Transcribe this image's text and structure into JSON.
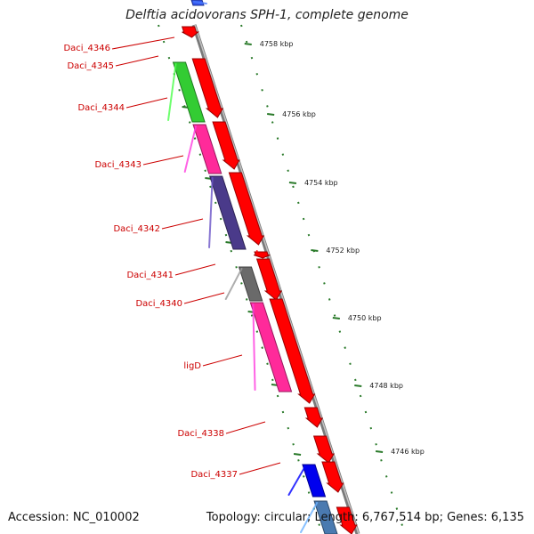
{
  "title": "Delftia acidovorans SPH-1, complete genome",
  "footer": {
    "accession": "Accession: NC_010002",
    "topology": "Topology: circular; Length: 6,767,514 bp; Genes: 6,135"
  },
  "colors": {
    "backbone": "#8a8a8a",
    "forward_gene": "#ff0000",
    "label": "#cc0000",
    "ruler_tick": "#2a7a2a",
    "cog_green": "#33cc33",
    "cog_pink": "#ff2a9a",
    "cog_purple": "#4a3a8a",
    "cog_gray": "#6a6a6a",
    "cog_blue": "#0000ee",
    "cog_steel": "#4a7ab0"
  },
  "ruler": {
    "units": "kbp",
    "ticks": [
      "4758 kbp",
      "4756 kbp",
      "4754 kbp",
      "4752 kbp",
      "4750 kbp",
      "4748 kbp",
      "4746 kbp"
    ]
  },
  "genes": [
    {
      "name": "Daci_4346",
      "cog": "none"
    },
    {
      "name": "Daci_4345",
      "cog": "none"
    },
    {
      "name": "Daci_4344",
      "cog": "green"
    },
    {
      "name": "Daci_4343",
      "cog": "pink"
    },
    {
      "name": "Daci_4342",
      "cog": "purple"
    },
    {
      "name": "Daci_4341",
      "cog": "none"
    },
    {
      "name": "Daci_4340",
      "cog": "gray"
    },
    {
      "name": "ligD",
      "cog": "pink"
    },
    {
      "name": "Daci_4338",
      "cog": "none"
    },
    {
      "name": "Daci_4337",
      "cog": "blue"
    }
  ]
}
